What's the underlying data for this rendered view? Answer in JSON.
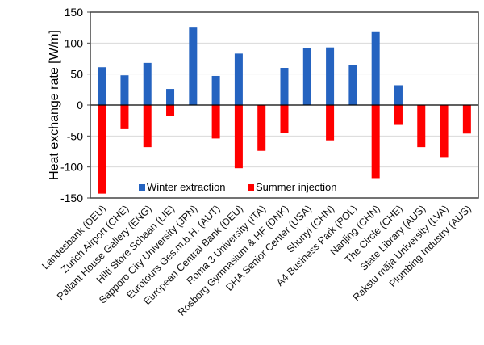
{
  "chart_data": {
    "type": "bar",
    "title": "",
    "xlabel": "",
    "ylabel": "Heat exchange rate [W/m]",
    "ylim": [
      -150,
      150
    ],
    "yticks": [
      -150,
      -100,
      -50,
      0,
      50,
      100,
      150
    ],
    "grid": true,
    "legend_position": "bottom-inside",
    "categories": [
      "Landesbank (DEU)",
      "Zurich Airport (CHE)",
      "Pallant House Gallery (ENG)",
      "Hilti Store Schaan (LIE)",
      "Sapporo City University (JPN)",
      "Eurotours Ges.m.b.H. (AUT)",
      "European Central Bank (DEU)",
      "Roma 3 University (ITA)",
      "Rosborg Gymnasium & HF (DNK)",
      "DHA Senior Center (USA)",
      "Shunyi (CHN)",
      "A4 Business Park (POL)",
      "Nanjing (CHN)",
      "The Circle (CHE)",
      "State Library (AUS)",
      "Rakstu māja University (LVA)",
      "Plumbing Industry (AUS)"
    ],
    "series": [
      {
        "name": "Winter extraction",
        "color": "#2563c0",
        "values": [
          61,
          48,
          68,
          26,
          125,
          47,
          83,
          null,
          60,
          92,
          93,
          65,
          119,
          32,
          null,
          null,
          null
        ]
      },
      {
        "name": "Summer injection",
        "color": "#ff0000",
        "values": [
          -143,
          -39,
          -68,
          -18,
          null,
          -54,
          -102,
          -74,
          -45,
          null,
          -57,
          null,
          -118,
          -32,
          -68,
          -84,
          -46
        ]
      }
    ]
  }
}
